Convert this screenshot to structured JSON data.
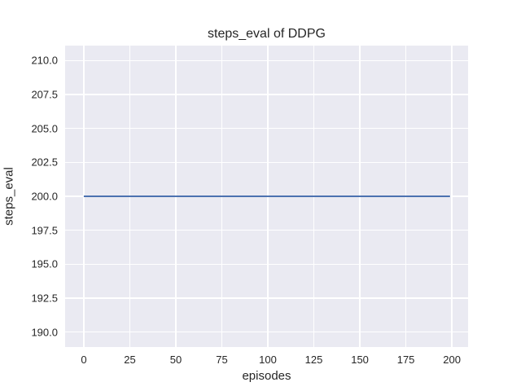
{
  "figure": {
    "title": "steps_eval of DDPG",
    "xlabel": "episodes",
    "ylabel": "steps_eval"
  },
  "chart_data": {
    "type": "line",
    "title": "steps_eval of DDPG",
    "xlabel": "episodes",
    "ylabel": "steps_eval",
    "xlim": [
      -10.15,
      208.8
    ],
    "ylim": [
      188.9,
      211.1
    ],
    "x_ticks": [
      0,
      25,
      50,
      75,
      100,
      125,
      150,
      175,
      200
    ],
    "x_tick_labels": [
      "0",
      "25",
      "50",
      "75",
      "100",
      "125",
      "150",
      "175",
      "200"
    ],
    "y_ticks": [
      190.0,
      192.5,
      195.0,
      197.5,
      200.0,
      202.5,
      205.0,
      207.5,
      210.0
    ],
    "y_tick_labels": [
      "190.0",
      "192.5",
      "195.0",
      "197.5",
      "200.0",
      "202.5",
      "205.0",
      "207.5",
      "210.0"
    ],
    "grid": true,
    "legend_position": "none",
    "series": [
      {
        "name": "DDPG",
        "color": "#4C72B0",
        "x": [
          0,
          199
        ],
        "y": [
          200,
          200
        ],
        "description": "constant value 200 for every evaluation episode from 0 to 199"
      }
    ],
    "colors": {
      "figure_background": "#FFFFFF",
      "plot_background": "#EAEAF2",
      "gridline": "#FFFFFF",
      "text": "#262626",
      "line": "#4C72B0"
    }
  }
}
